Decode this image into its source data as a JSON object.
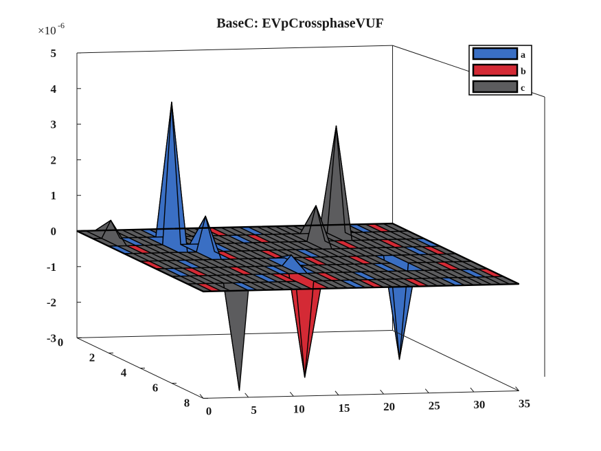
{
  "chart_data": {
    "type": "surface",
    "title": "BaseC: EVpCrossphaseVUF",
    "z_exponent_label": "×10-6",
    "z_exponent_base": "×10",
    "z_exponent_power": "-6",
    "x_ticks": [
      0,
      5,
      10,
      15,
      20,
      25,
      30,
      35
    ],
    "y_ticks": [
      0,
      2,
      4,
      6,
      8
    ],
    "z_ticks": [
      -3,
      -2,
      -1,
      0,
      1,
      2,
      3,
      4,
      5
    ],
    "x_range": [
      0,
      35
    ],
    "y_range": [
      0,
      8
    ],
    "z_range": [
      -3e-06,
      5e-06
    ],
    "grid": false,
    "legend_position": "top-right",
    "legend": [
      {
        "name": "a",
        "color": "#3a6fc4"
      },
      {
        "name": "b",
        "color": "#d42a35"
      },
      {
        "name": "c",
        "color": "#5c5c5e"
      }
    ],
    "series": [
      {
        "name": "a",
        "peaks": [
          {
            "x": 7,
            "y": 2,
            "z": 4e-06
          },
          {
            "x": 9,
            "y": 3,
            "z": 1e-06
          },
          {
            "x": 15,
            "y": 5,
            "z": 3e-07
          },
          {
            "x": 27,
            "y": 5,
            "z": -2.7e-06
          }
        ]
      },
      {
        "name": "b",
        "peaks": [
          {
            "x": 13,
            "y": 7,
            "z": -2.7e-06
          }
        ]
      },
      {
        "name": "c",
        "peaks": [
          {
            "x": 2,
            "y": 1,
            "z": 5e-07
          },
          {
            "x": 4,
            "y": 8,
            "z": -2.8e-06
          },
          {
            "x": 23,
            "y": 2,
            "z": 1e-06
          },
          {
            "x": 27,
            "y": 1,
            "z": 3e-06
          }
        ]
      }
    ]
  }
}
